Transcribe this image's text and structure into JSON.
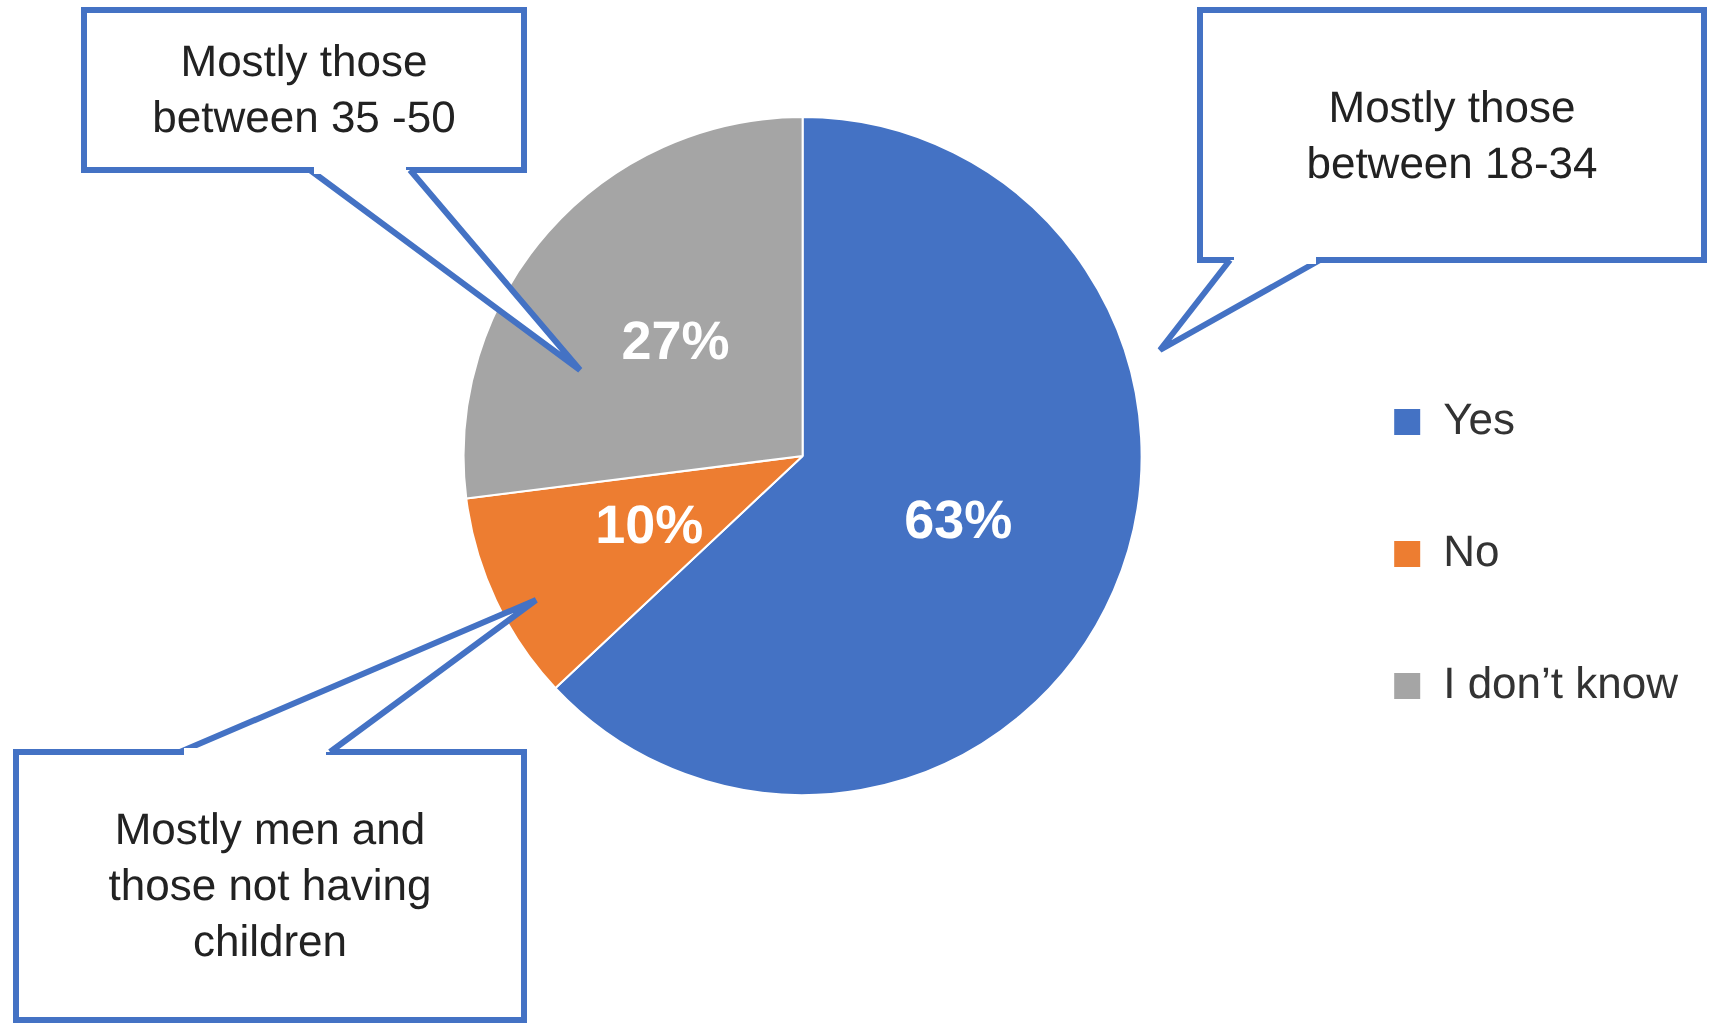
{
  "chart_data": {
    "type": "pie",
    "categories": [
      "Yes",
      "No",
      "I don’t know"
    ],
    "values": [
      63,
      10,
      27
    ],
    "colors": [
      "#4472c4",
      "#ed7d31",
      "#a5a5a5"
    ],
    "value_labels": [
      "63%",
      "10%",
      "27%"
    ],
    "legend": "right",
    "annotations": [
      "Mostly those between 35 -50",
      "Mostly those between 18-34",
      "Mostly men and those not having children"
    ]
  }
}
